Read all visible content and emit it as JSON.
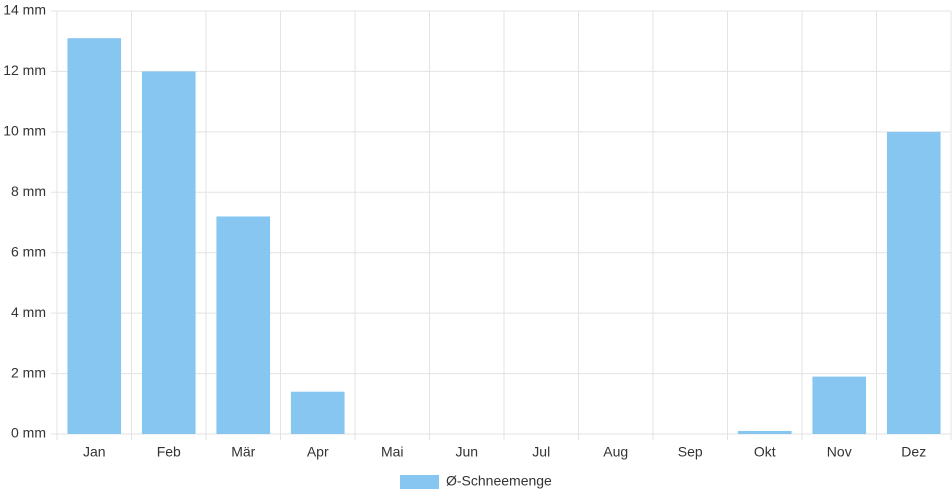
{
  "chart_data": {
    "type": "bar",
    "categories": [
      "Jan",
      "Feb",
      "Mär",
      "Apr",
      "Mai",
      "Jun",
      "Jul",
      "Aug",
      "Sep",
      "Okt",
      "Nov",
      "Dez"
    ],
    "series": [
      {
        "name": "Ø-Schneemenge",
        "color": "#88c6f2",
        "values": [
          13.1,
          12.0,
          7.2,
          1.4,
          0,
          0,
          0,
          0,
          0,
          0.1,
          1.9,
          10.0
        ]
      }
    ],
    "ylim": [
      0,
      14
    ],
    "yticks": [
      {
        "value": 0,
        "label": "0 mm"
      },
      {
        "value": 2,
        "label": "2 mm"
      },
      {
        "value": 4,
        "label": "4 mm"
      },
      {
        "value": 6,
        "label": "6 mm"
      },
      {
        "value": 8,
        "label": "8 mm"
      },
      {
        "value": 10,
        "label": "10 mm"
      },
      {
        "value": 12,
        "label": "12 mm"
      },
      {
        "value": 14,
        "label": "14 mm"
      }
    ],
    "grid": true,
    "legend": "bottom"
  }
}
